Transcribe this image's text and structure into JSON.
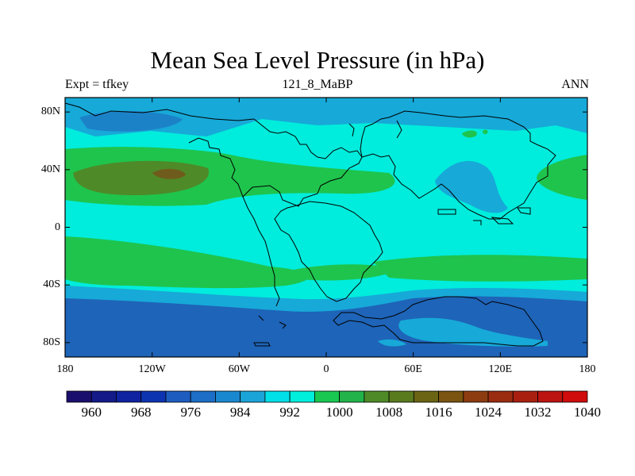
{
  "header": {
    "title": "Mean Sea Level Pressure (in hPa)",
    "left": "Expt = tfkey",
    "center": "121_8_MaBP",
    "right": "ANN"
  },
  "map": {
    "lon_range": [
      -180,
      180
    ],
    "lat_range": [
      -90,
      90
    ],
    "x_ticks": [
      "180",
      "120W",
      "60W",
      "0",
      "60E",
      "120E",
      "180"
    ],
    "y_ticks": [
      "80N",
      "40N",
      "0",
      "40S",
      "80S"
    ],
    "field_colors": {
      "low_980": "#1e64b8",
      "band_988": "#1c82c8",
      "band_996": "#17a9d8",
      "mid_1000": "#00ecdc",
      "high_1008": "#1fc44c",
      "high_1016": "#4e8a28",
      "high_1020": "#6f5c1c"
    }
  },
  "colorbar": {
    "colors": [
      "#1b0f6e",
      "#141a88",
      "#0f23a0",
      "#0d34b0",
      "#1e5cc0",
      "#1c6ec6",
      "#1a88ce",
      "#1ba4d8",
      "#00e0e8",
      "#00eedc",
      "#18c850",
      "#22b44a",
      "#4e8a28",
      "#5a7a1e",
      "#6a6414",
      "#7a5410",
      "#8c3c10",
      "#9a2c10",
      "#aa2010",
      "#bc1410",
      "#d00c0c"
    ],
    "labels": [
      "960",
      "968",
      "976",
      "984",
      "992",
      "1000",
      "1008",
      "1016",
      "1024",
      "1032",
      "1040"
    ]
  }
}
